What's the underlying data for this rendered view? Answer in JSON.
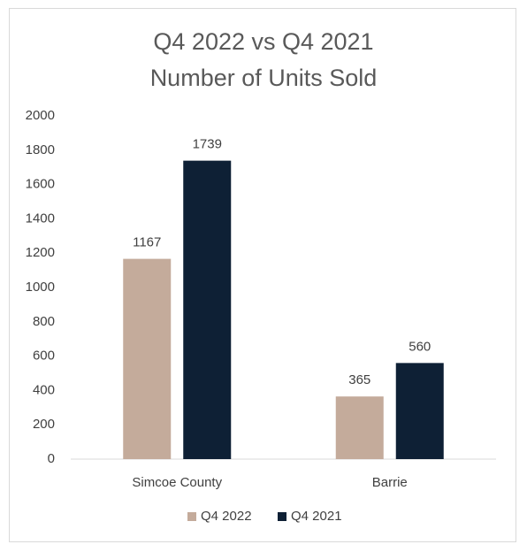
{
  "chart_data": {
    "type": "bar",
    "title": [
      "Q4 2022 vs Q4 2021",
      "Number of Units Sold"
    ],
    "categories": [
      "Simcoe County",
      "Barrie"
    ],
    "series": [
      {
        "name": "Q4 2022",
        "color": "#c4ab9b",
        "values": [
          1167,
          365
        ]
      },
      {
        "name": "Q4 2021",
        "color": "#0e2035",
        "values": [
          1739,
          560
        ]
      }
    ],
    "ylim": [
      0,
      2000
    ],
    "yticks": [
      0,
      200,
      400,
      600,
      800,
      1000,
      1200,
      1400,
      1600,
      1800,
      2000
    ],
    "grid": false,
    "legend_position": "bottom",
    "data_labels": true
  }
}
